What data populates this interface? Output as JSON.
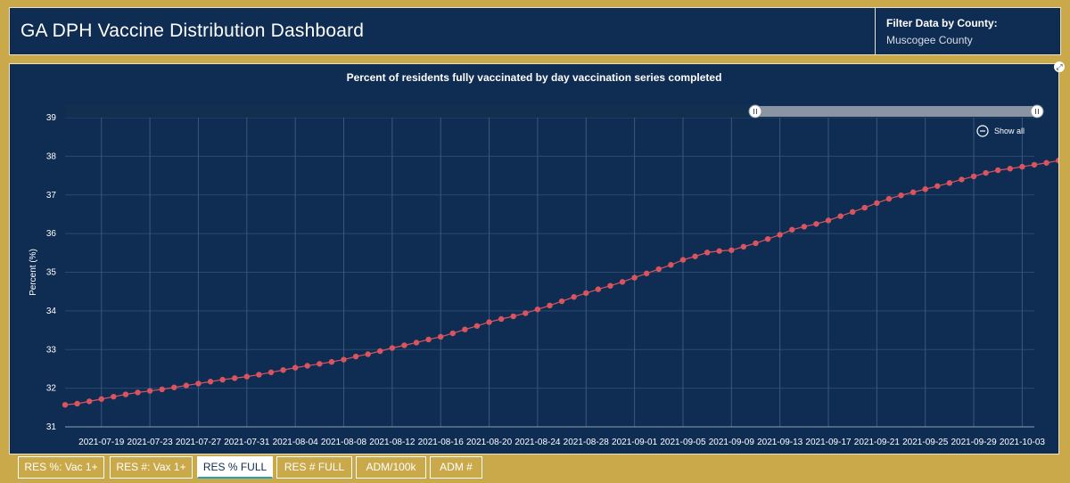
{
  "header": {
    "title": "GA DPH Vaccine Distribution Dashboard",
    "filter_label": "Filter Data by County:",
    "filter_value": "Muscogee County"
  },
  "chart_data": {
    "type": "scatter",
    "title": "Percent of residents fully vaccinated by day vaccination series completed",
    "xlabel": "",
    "ylabel": "Percent (%)",
    "ylim": [
      31,
      39
    ],
    "y_ticks": [
      31,
      32,
      33,
      34,
      35,
      36,
      37,
      38,
      39
    ],
    "x_tick_labels": [
      "2021-07-19",
      "2021-07-23",
      "2021-07-27",
      "2021-07-31",
      "2021-08-04",
      "2021-08-08",
      "2021-08-12",
      "2021-08-16",
      "2021-08-20",
      "2021-08-24",
      "2021-08-28",
      "2021-09-01",
      "2021-09-05",
      "2021-09-09",
      "2021-09-13",
      "2021-09-17",
      "2021-09-21",
      "2021-09-25",
      "2021-09-29",
      "2021-10-03"
    ],
    "x_start": "2021-07-16",
    "x_end": "2021-10-04",
    "grid": true,
    "zoom_control": "Show all",
    "color": "#d9545f",
    "values": [
      31.57,
      31.6,
      31.66,
      31.72,
      31.78,
      31.84,
      31.89,
      31.93,
      31.97,
      32.02,
      32.07,
      32.12,
      32.17,
      32.22,
      32.26,
      32.3,
      32.35,
      32.41,
      32.47,
      32.53,
      32.58,
      32.63,
      32.68,
      32.74,
      32.82,
      32.88,
      32.96,
      33.04,
      33.11,
      33.18,
      33.26,
      33.33,
      33.42,
      33.52,
      33.61,
      33.71,
      33.79,
      33.86,
      33.94,
      34.04,
      34.14,
      34.25,
      34.36,
      34.46,
      34.56,
      34.65,
      34.75,
      34.86,
      34.97,
      35.08,
      35.19,
      35.32,
      35.41,
      35.51,
      35.55,
      35.57,
      35.66,
      35.75,
      35.86,
      35.97,
      36.1,
      36.18,
      36.25,
      36.34,
      36.45,
      36.56,
      36.67,
      36.79,
      36.9,
      36.99,
      37.07,
      37.15,
      37.23,
      37.31,
      37.4,
      37.48,
      37.57,
      37.64,
      37.68,
      37.73,
      37.78,
      37.83,
      37.89,
      37.95,
      38.02,
      38.08,
      38.1,
      38.12
    ]
  },
  "tabs": [
    {
      "label": "RES %: Vac 1+",
      "active": false
    },
    {
      "label": "RES #: Vax 1+",
      "active": false
    },
    {
      "label": "RES % FULL",
      "active": true
    },
    {
      "label": "RES # FULL",
      "active": false
    },
    {
      "label": "ADM/100k",
      "active": false
    },
    {
      "label": "ADM #",
      "active": false
    }
  ]
}
